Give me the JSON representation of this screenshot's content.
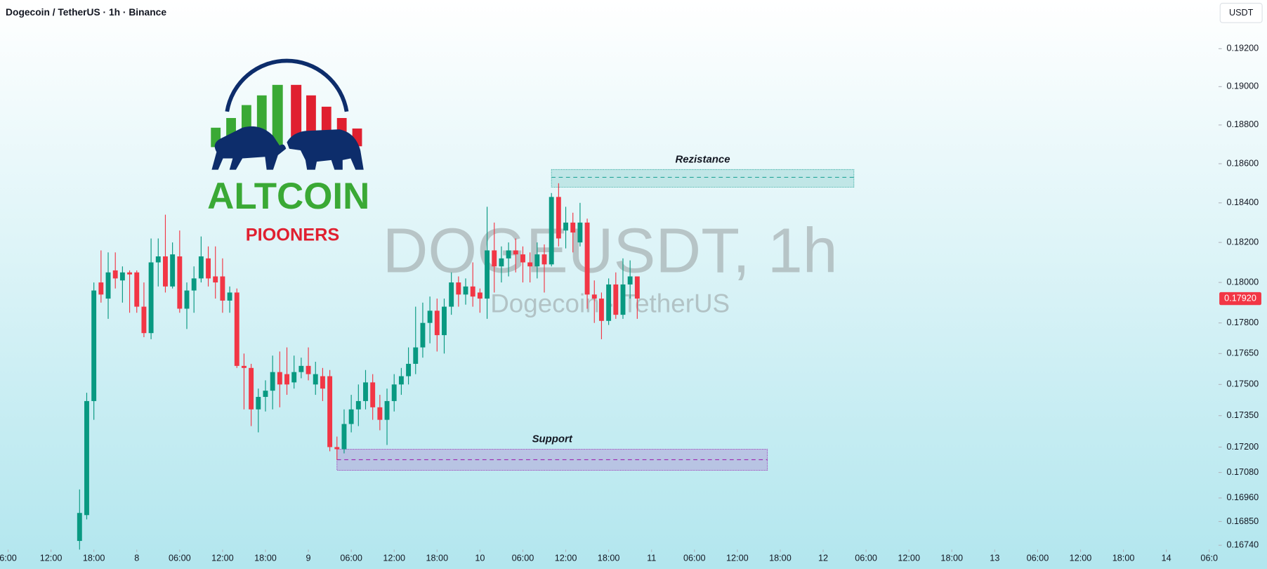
{
  "chart_data": {
    "type": "candlestick",
    "title": "Dogecoin / TetherUS · 1h · Binance",
    "currency": "USDT",
    "watermark": "DOGEUSDT, 1h",
    "watermark_subtitle": "Dogecoin · TetherUS",
    "logo": {
      "title": "ALTCOIN",
      "subtitle": "PIOONERS"
    },
    "log_scale": true,
    "up_color": "#089981",
    "down_color": "#f23645",
    "x": [
      16,
      17,
      18,
      19,
      20,
      21,
      22,
      23,
      24,
      25,
      26,
      27,
      28,
      29,
      30,
      31,
      32,
      33,
      34,
      35,
      36,
      37,
      38,
      39,
      40,
      41,
      42,
      43,
      44,
      45,
      46,
      47,
      48,
      49,
      50,
      51,
      52,
      53,
      54,
      55,
      56,
      57,
      58,
      59,
      60,
      61,
      62,
      63,
      64,
      65,
      66,
      67,
      68,
      69,
      70,
      71,
      72,
      73,
      74,
      75,
      76,
      77,
      78,
      79,
      80,
      81,
      82,
      83,
      84,
      85,
      86,
      87,
      88,
      89,
      90,
      91,
      92,
      93,
      94
    ],
    "open": [
      0.1676,
      0.1688,
      0.1742,
      0.18,
      0.1792,
      0.1806,
      0.1801,
      0.1805,
      0.1805,
      0.1788,
      0.1775,
      0.181,
      0.1813,
      0.1798,
      0.1813,
      0.1787,
      0.1796,
      0.1802,
      0.1812,
      0.1803,
      0.1803,
      0.1791,
      0.1795,
      0.1759,
      0.1758,
      0.1738,
      0.1744,
      0.1747,
      0.1756,
      0.1755,
      0.1751,
      0.1756,
      0.1759,
      0.175,
      0.1754,
      0.1754,
      0.172,
      0.1719,
      0.1731,
      0.1738,
      0.1742,
      0.1751,
      0.1739,
      0.1733,
      0.1742,
      0.175,
      0.1754,
      0.176,
      0.1768,
      0.178,
      0.1786,
      0.1774,
      0.1788,
      0.18,
      0.1794,
      0.1798,
      0.1795,
      0.1792,
      0.1816,
      0.1808,
      0.1812,
      0.1816,
      0.1814,
      0.181,
      0.1808,
      0.1814,
      0.1809,
      0.1843,
      0.1826,
      0.183,
      0.182,
      0.183,
      0.1794,
      0.1792,
      0.1781,
      0.1799,
      0.1784,
      0.1799,
      0.1803
    ],
    "high": [
      0.17,
      0.1746,
      0.18,
      0.1816,
      0.1815,
      0.1815,
      0.1808,
      0.1806,
      0.1806,
      0.18,
      0.1822,
      0.1822,
      0.1834,
      0.182,
      0.1826,
      0.18,
      0.1808,
      0.1823,
      0.1818,
      0.1818,
      0.1812,
      0.1798,
      0.1797,
      0.1765,
      0.176,
      0.1748,
      0.1752,
      0.1764,
      0.1766,
      0.1768,
      0.1764,
      0.1763,
      0.1768,
      0.1761,
      0.1758,
      0.1757,
      0.1725,
      0.1738,
      0.1745,
      0.175,
      0.1757,
      0.1755,
      0.1745,
      0.1748,
      0.1755,
      0.1758,
      0.1768,
      0.1788,
      0.179,
      0.1793,
      0.1792,
      0.1792,
      0.1805,
      0.1803,
      0.1802,
      0.181,
      0.1797,
      0.1838,
      0.183,
      0.1818,
      0.182,
      0.1822,
      0.1818,
      0.1815,
      0.182,
      0.1819,
      0.1845,
      0.185,
      0.1838,
      0.1835,
      0.184,
      0.1832,
      0.1801,
      0.1795,
      0.1802,
      0.1805,
      0.1812,
      0.1811,
      0.1803
    ],
    "low": [
      0.1672,
      0.1686,
      0.1733,
      0.179,
      0.1782,
      0.1797,
      0.179,
      0.1785,
      0.1785,
      0.1773,
      0.1772,
      0.1798,
      0.1795,
      0.1797,
      0.1785,
      0.1777,
      0.1785,
      0.18,
      0.1798,
      0.1792,
      0.1785,
      0.1785,
      0.1758,
      0.1738,
      0.173,
      0.1727,
      0.1737,
      0.1738,
      0.1739,
      0.1745,
      0.1748,
      0.1753,
      0.1752,
      0.1745,
      0.1742,
      0.1718,
      0.1714,
      0.1717,
      0.1727,
      0.173,
      0.1738,
      0.1733,
      0.1728,
      0.1721,
      0.1737,
      0.1745,
      0.175,
      0.1755,
      0.1763,
      0.177,
      0.1766,
      0.1765,
      0.1784,
      0.1788,
      0.1789,
      0.1788,
      0.1785,
      0.1782,
      0.1795,
      0.18,
      0.1803,
      0.1805,
      0.18,
      0.18,
      0.1802,
      0.1795,
      0.1808,
      0.1818,
      0.1817,
      0.1815,
      0.1818,
      0.1787,
      0.178,
      0.1772,
      0.1779,
      0.1782,
      0.1782,
      0.1792,
      0.1782
    ],
    "close": [
      0.1689,
      0.1742,
      0.1796,
      0.1794,
      0.1805,
      0.1802,
      0.1805,
      0.1804,
      0.1788,
      0.1775,
      0.181,
      0.1813,
      0.1798,
      0.1814,
      0.1787,
      0.1796,
      0.1802,
      0.1813,
      0.1802,
      0.18,
      0.1791,
      0.1795,
      0.1759,
      0.1758,
      0.1738,
      0.1744,
      0.1747,
      0.1756,
      0.175,
      0.175,
      0.1756,
      0.1759,
      0.1755,
      0.1755,
      0.1748,
      0.172,
      0.1719,
      0.1731,
      0.1738,
      0.1742,
      0.1751,
      0.1739,
      0.1733,
      0.1742,
      0.175,
      0.1754,
      0.176,
      0.1768,
      0.178,
      0.1786,
      0.1774,
      0.1788,
      0.18,
      0.1794,
      0.1798,
      0.1793,
      0.1792,
      0.1816,
      0.1808,
      0.1812,
      0.1816,
      0.1814,
      0.181,
      0.1808,
      0.1814,
      0.1809,
      0.1843,
      0.1822,
      0.183,
      0.1825,
      0.183,
      0.1794,
      0.1792,
      0.1781,
      0.1799,
      0.1784,
      0.1799,
      0.1803,
      0.1792
    ],
    "last_price": {
      "value": 0.1792,
      "label": "0.17920"
    },
    "zones": [
      {
        "name": "Rezistance",
        "x": [
          82,
          124.3
        ],
        "y": [
          0.1848,
          0.1857
        ],
        "level": 0.1853,
        "color": "#26a69a"
      },
      {
        "name": "Support",
        "x": [
          52,
          112.2
        ],
        "y": [
          0.1709,
          0.1719
        ],
        "level": 0.1714,
        "color": "#9c27b0"
      }
    ],
    "xlim": [
      4.87,
      175.3
    ],
    "ylim": [
      0.1672,
      0.1946
    ],
    "yticks": [
      {
        "value": 0.192,
        "label": "0.19200"
      },
      {
        "value": 0.19,
        "label": "0.19000"
      },
      {
        "value": 0.188,
        "label": "0.18800"
      },
      {
        "value": 0.186,
        "label": "0.18600"
      },
      {
        "value": 0.184,
        "label": "0.18400"
      },
      {
        "value": 0.182,
        "label": "0.18200"
      },
      {
        "value": 0.18,
        "label": "0.18000"
      },
      {
        "value": 0.178,
        "label": "0.17800"
      },
      {
        "value": 0.1765,
        "label": "0.17650"
      },
      {
        "value": 0.175,
        "label": "0.17500"
      },
      {
        "value": 0.1735,
        "label": "0.17350"
      },
      {
        "value": 0.172,
        "label": "0.17200"
      },
      {
        "value": 0.1708,
        "label": "0.17080"
      },
      {
        "value": 0.1696,
        "label": "0.16960"
      },
      {
        "value": 0.1685,
        "label": "0.16850"
      },
      {
        "value": 0.1674,
        "label": "0.16740"
      }
    ],
    "xticks": [
      {
        "value": 6,
        "label": "6:00"
      },
      {
        "value": 12,
        "label": "12:00"
      },
      {
        "value": 18,
        "label": "18:00"
      },
      {
        "value": 24,
        "label": "8"
      },
      {
        "value": 30,
        "label": "06:00"
      },
      {
        "value": 36,
        "label": "12:00"
      },
      {
        "value": 42,
        "label": "18:00"
      },
      {
        "value": 48,
        "label": "9"
      },
      {
        "value": 54,
        "label": "06:00"
      },
      {
        "value": 60,
        "label": "12:00"
      },
      {
        "value": 66,
        "label": "18:00"
      },
      {
        "value": 72,
        "label": "10"
      },
      {
        "value": 78,
        "label": "06:00"
      },
      {
        "value": 84,
        "label": "12:00"
      },
      {
        "value": 90,
        "label": "18:00"
      },
      {
        "value": 96,
        "label": "11"
      },
      {
        "value": 102,
        "label": "06:00"
      },
      {
        "value": 108,
        "label": "12:00"
      },
      {
        "value": 114,
        "label": "18:00"
      },
      {
        "value": 120,
        "label": "12"
      },
      {
        "value": 126,
        "label": "06:00"
      },
      {
        "value": 132,
        "label": "12:00"
      },
      {
        "value": 138,
        "label": "18:00"
      },
      {
        "value": 144,
        "label": "13"
      },
      {
        "value": 150,
        "label": "06:00"
      },
      {
        "value": 156,
        "label": "12:00"
      },
      {
        "value": 162,
        "label": "18:00"
      },
      {
        "value": 168,
        "label": "14"
      },
      {
        "value": 174,
        "label": "06:0"
      }
    ]
  }
}
